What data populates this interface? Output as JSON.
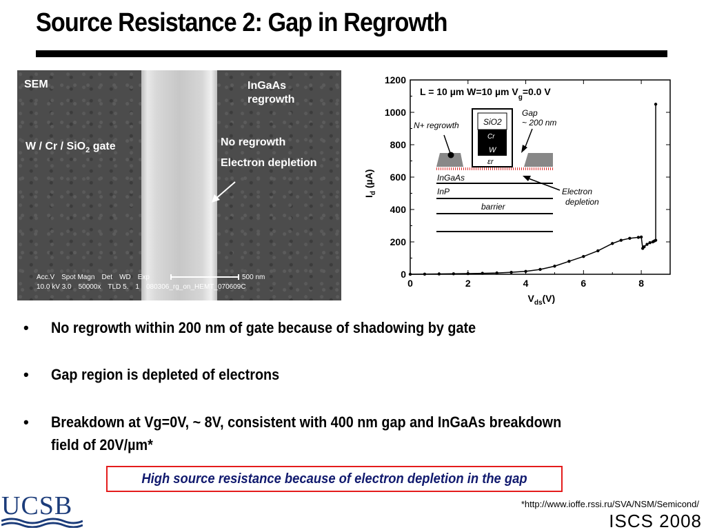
{
  "slide": {
    "title": "Source Resistance 2: Gap in Regrowth"
  },
  "sem": {
    "label": "SEM",
    "regrowth_label_1": "InGaAs",
    "regrowth_label_2": "regrowth",
    "gate_label": "W / Cr / SiO",
    "gate_sub": "2",
    "gate_suffix": " gate",
    "no_regrowth": "No regrowth",
    "electron_depletion": "Electron depletion",
    "meta_headers": [
      "Acc.V",
      "Spot Magn",
      "Det",
      "WD",
      "Exp"
    ],
    "meta_values": [
      "10.0 kV 3.0",
      "50000x",
      "TLD 5.",
      "1",
      "080306_rg_on_HEMT_070609C"
    ],
    "scale_label": "500 nm"
  },
  "chart_data": {
    "type": "line",
    "xlabel": "V",
    "xlabel_sub": "ds",
    "xlabel_suffix": "(V)",
    "ylabel": "I",
    "ylabel_sub": "d",
    "ylabel_suffix": " (µA)",
    "xlim": [
      0,
      9
    ],
    "ylim": [
      0,
      1200
    ],
    "xticks": [
      0,
      2,
      4,
      6,
      8
    ],
    "yticks": [
      0,
      200,
      400,
      600,
      800,
      1000,
      1200
    ],
    "annotation": "L = 10 µm W=10 µm V",
    "annotation_sub": "g",
    "annotation_suffix": "=0.0 V",
    "series": [
      {
        "x": [
          0,
          0.5,
          1,
          1.5,
          2,
          2.5,
          3,
          3.5,
          4,
          4.5,
          5,
          5.5,
          6,
          6.5,
          7,
          7.3,
          7.6,
          7.9,
          8.0,
          8.05,
          8.1,
          8.2,
          8.3,
          8.4,
          8.45,
          8.5,
          8.5
        ],
        "y": [
          0,
          1,
          2,
          3,
          4,
          6,
          8,
          12,
          18,
          30,
          50,
          80,
          110,
          145,
          190,
          210,
          222,
          228,
          230,
          160,
          170,
          185,
          195,
          200,
          205,
          210,
          1050
        ]
      }
    ],
    "inset": {
      "gate_layers": [
        "SiO2",
        "Cr",
        "W",
        "εr"
      ],
      "n_regrowth": "N+ regrowth",
      "gap": "Gap",
      "gap_size": "~ 200 nm",
      "layers": [
        "InGaAs",
        "InP",
        "barrier"
      ],
      "depletion_1": "Electron",
      "depletion_2": "depletion"
    }
  },
  "bullets": [
    "No regrowth within 200 nm of gate because of shadowing by gate",
    "Gap region is depleted of electrons",
    "Breakdown at Vg=0V,  ~ 8V, consistent with 400 nm gap and InGaAs breakdown",
    "field of 20V/µm*"
  ],
  "bullet_symbol": "•",
  "conclusion": "High source resistance because of electron depletion in the gap",
  "logo": "UCSB",
  "footnote": "*http://www.ioffe.rssi.ru/SVA/NSM/Semicond/",
  "conference": "ISCS 2008",
  "colors": {
    "highlight_border": "#e41b1b",
    "conclusion_text": "#111a6e",
    "logo": "#1c3c7a"
  }
}
